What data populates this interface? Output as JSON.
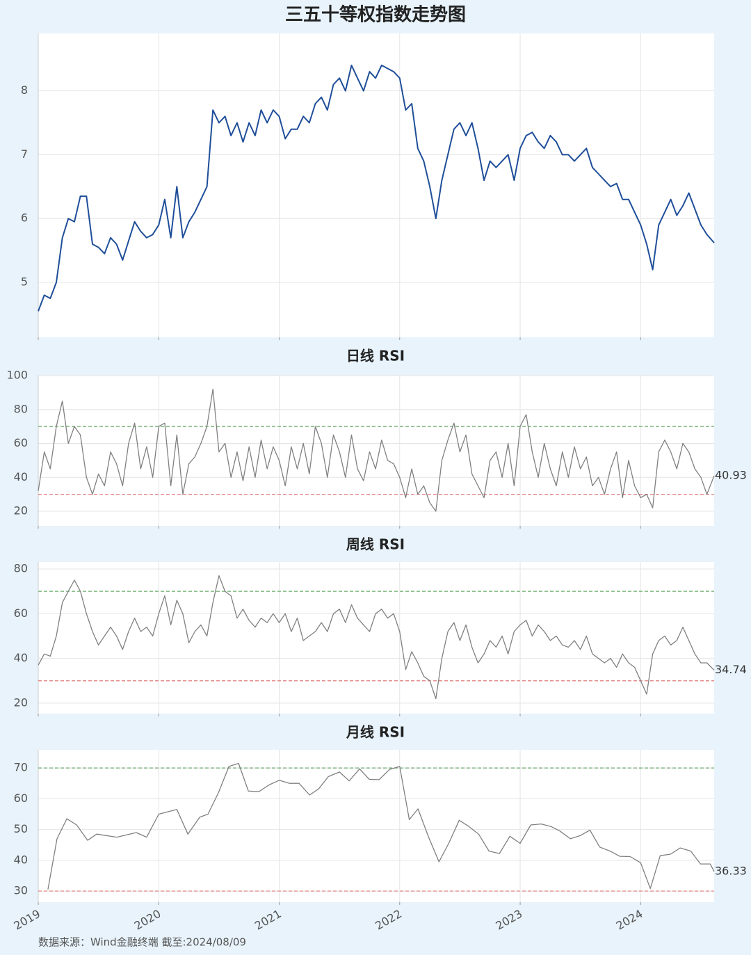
{
  "chart_data": [
    {
      "type": "line",
      "title": "三五十等权指数走势图",
      "x": [
        2019,
        2019.05,
        2019.1,
        2019.15,
        2019.2,
        2019.25,
        2019.3,
        2019.35,
        2019.4,
        2019.45,
        2019.5,
        2019.55,
        2019.6,
        2019.65,
        2019.7,
        2019.75,
        2019.8,
        2019.85,
        2019.9,
        2019.95,
        2020,
        2020.05,
        2020.1,
        2020.15,
        2020.2,
        2020.25,
        2020.3,
        2020.35,
        2020.4,
        2020.45,
        2020.5,
        2020.55,
        2020.6,
        2020.65,
        2020.7,
        2020.75,
        2020.8,
        2020.85,
        2020.9,
        2020.95,
        2021,
        2021.05,
        2021.1,
        2021.15,
        2021.2,
        2021.25,
        2021.3,
        2021.35,
        2021.4,
        2021.45,
        2021.5,
        2021.55,
        2021.6,
        2021.65,
        2021.7,
        2021.75,
        2021.8,
        2021.85,
        2021.9,
        2021.95,
        2022,
        2022.05,
        2022.1,
        2022.15,
        2022.2,
        2022.25,
        2022.3,
        2022.35,
        2022.4,
        2022.45,
        2022.5,
        2022.55,
        2022.6,
        2022.65,
        2022.7,
        2022.75,
        2022.8,
        2022.85,
        2022.9,
        2022.95,
        2023,
        2023.05,
        2023.1,
        2023.15,
        2023.2,
        2023.25,
        2023.3,
        2023.35,
        2023.4,
        2023.45,
        2023.5,
        2023.55,
        2023.6,
        2023.65,
        2023.7,
        2023.75,
        2023.8,
        2023.85,
        2023.9,
        2023.95,
        2024,
        2024.05,
        2024.1,
        2024.15,
        2024.2,
        2024.25,
        2024.3,
        2024.35,
        2024.4,
        2024.45,
        2024.5,
        2024.55,
        2024.61
      ],
      "series": [
        {
          "color": "#1f4e99",
          "values": [
            4.55,
            4.8,
            4.75,
            5.0,
            5.7,
            6.0,
            5.95,
            6.35,
            6.35,
            5.6,
            5.55,
            5.45,
            5.7,
            5.6,
            5.35,
            5.65,
            5.95,
            5.8,
            5.7,
            5.75,
            5.9,
            6.3,
            5.7,
            6.5,
            5.7,
            5.95,
            6.1,
            6.3,
            6.5,
            7.7,
            7.5,
            7.6,
            7.3,
            7.5,
            7.2,
            7.5,
            7.3,
            7.7,
            7.5,
            7.7,
            7.6,
            7.25,
            7.4,
            7.4,
            7.6,
            7.5,
            7.8,
            7.9,
            7.7,
            8.1,
            8.2,
            8.0,
            8.4,
            8.2,
            8.0,
            8.3,
            8.2,
            8.4,
            8.35,
            8.3,
            8.2,
            7.7,
            7.8,
            7.1,
            6.9,
            6.5,
            6.0,
            6.6,
            7.0,
            7.4,
            7.5,
            7.3,
            7.5,
            7.1,
            6.6,
            6.9,
            6.8,
            6.9,
            7.0,
            6.6,
            7.1,
            7.3,
            7.35,
            7.2,
            7.1,
            7.3,
            7.2,
            7.0,
            7.0,
            6.9,
            7.0,
            7.1,
            6.8,
            6.7,
            6.6,
            6.5,
            6.55,
            6.3,
            6.3,
            6.1,
            5.9,
            5.6,
            5.2,
            5.9,
            6.1,
            6.3,
            6.05,
            6.2,
            6.4,
            6.15,
            5.9,
            5.75,
            5.62
          ]
        }
      ],
      "xlim": [
        2019,
        2024.61
      ],
      "xticks": [
        2019,
        2020,
        2021,
        2022,
        2023,
        2024
      ],
      "xtick_labels": false,
      "ylim": [
        4.14,
        8.9
      ],
      "yticks": [
        5,
        6,
        7,
        8
      ],
      "grid": true
    },
    {
      "type": "line",
      "title": "日线 RSI",
      "x": [
        2019,
        2019.05,
        2019.1,
        2019.15,
        2019.2,
        2019.25,
        2019.3,
        2019.35,
        2019.4,
        2019.45,
        2019.5,
        2019.55,
        2019.6,
        2019.65,
        2019.7,
        2019.75,
        2019.8,
        2019.85,
        2019.9,
        2019.95,
        2020,
        2020.05,
        2020.1,
        2020.15,
        2020.2,
        2020.25,
        2020.3,
        2020.35,
        2020.4,
        2020.45,
        2020.5,
        2020.55,
        2020.6,
        2020.65,
        2020.7,
        2020.75,
        2020.8,
        2020.85,
        2020.9,
        2020.95,
        2021,
        2021.05,
        2021.1,
        2021.15,
        2021.2,
        2021.25,
        2021.3,
        2021.35,
        2021.4,
        2021.45,
        2021.5,
        2021.55,
        2021.6,
        2021.65,
        2021.7,
        2021.75,
        2021.8,
        2021.85,
        2021.9,
        2021.95,
        2022,
        2022.05,
        2022.1,
        2022.15,
        2022.2,
        2022.25,
        2022.3,
        2022.35,
        2022.4,
        2022.45,
        2022.5,
        2022.55,
        2022.6,
        2022.65,
        2022.7,
        2022.75,
        2022.8,
        2022.85,
        2022.9,
        2022.95,
        2023,
        2023.05,
        2023.1,
        2023.15,
        2023.2,
        2023.25,
        2023.3,
        2023.35,
        2023.4,
        2023.45,
        2023.5,
        2023.55,
        2023.6,
        2023.65,
        2023.7,
        2023.75,
        2023.8,
        2023.85,
        2023.9,
        2023.95,
        2024,
        2024.05,
        2024.1,
        2024.15,
        2024.2,
        2024.25,
        2024.3,
        2024.35,
        2024.4,
        2024.45,
        2024.5,
        2024.55,
        2024.61
      ],
      "series": [
        {
          "color": "#808080",
          "values": [
            32,
            55,
            45,
            70,
            85,
            60,
            70,
            65,
            40,
            30,
            42,
            35,
            55,
            48,
            35,
            60,
            72,
            45,
            58,
            40,
            70,
            72,
            35,
            65,
            30,
            48,
            52,
            60,
            70,
            92,
            55,
            60,
            40,
            55,
            38,
            58,
            40,
            62,
            45,
            58,
            50,
            35,
            58,
            45,
            60,
            42,
            70,
            60,
            40,
            65,
            55,
            40,
            65,
            45,
            38,
            55,
            45,
            62,
            50,
            48,
            40,
            28,
            45,
            30,
            35,
            25,
            20,
            50,
            62,
            72,
            55,
            65,
            42,
            35,
            28,
            50,
            55,
            40,
            60,
            35,
            70,
            77,
            55,
            40,
            60,
            45,
            35,
            55,
            40,
            58,
            45,
            52,
            35,
            40,
            30,
            45,
            55,
            28,
            50,
            35,
            28,
            30,
            22,
            55,
            62,
            55,
            45,
            60,
            55,
            45,
            40,
            30,
            40.93
          ]
        }
      ],
      "annotation": "40.93",
      "reference_lines": [
        {
          "value": 70,
          "color": "#6aaa6a"
        },
        {
          "value": 30,
          "color": "#e07a7a"
        }
      ],
      "xlim": [
        2019,
        2024.61
      ],
      "xticks": [
        2019,
        2020,
        2021,
        2022,
        2023,
        2024
      ],
      "xtick_labels": false,
      "ylim": [
        11.4,
        100
      ],
      "yticks": [
        20,
        40,
        60,
        80,
        100
      ],
      "grid": true
    },
    {
      "type": "line",
      "title": "周线 RSI",
      "x": [
        2019,
        2019.05,
        2019.1,
        2019.15,
        2019.2,
        2019.25,
        2019.3,
        2019.35,
        2019.4,
        2019.45,
        2019.5,
        2019.55,
        2019.6,
        2019.65,
        2019.7,
        2019.75,
        2019.8,
        2019.85,
        2019.9,
        2019.95,
        2020,
        2020.05,
        2020.1,
        2020.15,
        2020.2,
        2020.25,
        2020.3,
        2020.35,
        2020.4,
        2020.45,
        2020.5,
        2020.55,
        2020.6,
        2020.65,
        2020.7,
        2020.75,
        2020.8,
        2020.85,
        2020.9,
        2020.95,
        2021,
        2021.05,
        2021.1,
        2021.15,
        2021.2,
        2021.25,
        2021.3,
        2021.35,
        2021.4,
        2021.45,
        2021.5,
        2021.55,
        2021.6,
        2021.65,
        2021.7,
        2021.75,
        2021.8,
        2021.85,
        2021.9,
        2021.95,
        2022,
        2022.05,
        2022.1,
        2022.15,
        2022.2,
        2022.25,
        2022.3,
        2022.35,
        2022.4,
        2022.45,
        2022.5,
        2022.55,
        2022.6,
        2022.65,
        2022.7,
        2022.75,
        2022.8,
        2022.85,
        2022.9,
        2022.95,
        2023,
        2023.05,
        2023.1,
        2023.15,
        2023.2,
        2023.25,
        2023.3,
        2023.35,
        2023.4,
        2023.45,
        2023.5,
        2023.55,
        2023.6,
        2023.65,
        2023.7,
        2023.75,
        2023.8,
        2023.85,
        2023.9,
        2023.95,
        2024,
        2024.05,
        2024.1,
        2024.15,
        2024.2,
        2024.25,
        2024.3,
        2024.35,
        2024.4,
        2024.45,
        2024.5,
        2024.55,
        2024.61
      ],
      "series": [
        {
          "color": "#808080",
          "values": [
            37,
            42,
            41,
            50,
            65,
            70,
            75,
            70,
            60,
            52,
            46,
            50,
            54,
            50,
            44,
            52,
            58,
            52,
            54,
            50,
            60,
            68,
            55,
            66,
            60,
            47,
            52,
            55,
            50,
            65,
            77,
            70,
            68,
            58,
            62,
            57,
            54,
            58,
            56,
            60,
            56,
            60,
            52,
            58,
            48,
            50,
            52,
            56,
            52,
            60,
            62,
            56,
            64,
            58,
            55,
            52,
            60,
            62,
            58,
            60,
            52,
            35,
            43,
            38,
            32,
            30,
            22,
            40,
            52,
            56,
            48,
            55,
            45,
            38,
            42,
            48,
            45,
            50,
            42,
            52,
            55,
            57,
            50,
            55,
            52,
            48,
            50,
            46,
            45,
            48,
            44,
            50,
            42,
            40,
            38,
            40,
            36,
            42,
            38,
            36,
            30,
            24,
            42,
            48,
            50,
            46,
            48,
            54,
            48,
            42,
            38,
            38,
            34.74
          ]
        }
      ],
      "annotation": "34.74",
      "reference_lines": [
        {
          "value": 70,
          "color": "#6aaa6a"
        },
        {
          "value": 30,
          "color": "#e07a7a"
        }
      ],
      "xlim": [
        2019,
        2024.61
      ],
      "xticks": [
        2019,
        2020,
        2021,
        2022,
        2023,
        2024
      ],
      "xtick_labels": false,
      "ylim": [
        15.3,
        83.1
      ],
      "yticks": [
        20,
        40,
        60,
        80
      ],
      "grid": true
    },
    {
      "type": "line",
      "title": "月线 RSI",
      "x": [
        2019.08,
        2019.156,
        2019.237,
        2019.318,
        2019.41,
        2019.485,
        2019.652,
        2019.814,
        2019.9,
        2020.0,
        2020.15,
        2020.242,
        2020.34,
        2020.409,
        2020.496,
        2020.583,
        2020.663,
        2020.744,
        2020.83,
        2020.917,
        2021.0,
        2021.085,
        2021.165,
        2021.252,
        2021.327,
        2021.408,
        2021.5,
        2021.581,
        2021.667,
        2021.748,
        2021.829,
        2021.915,
        2022.0,
        2022.08,
        2022.152,
        2022.24,
        2022.326,
        2022.407,
        2022.494,
        2022.574,
        2022.655,
        2022.741,
        2022.828,
        2022.915,
        2023.0,
        2023.088,
        2023.174,
        2023.255,
        2023.33,
        2023.417,
        2023.498,
        2023.579,
        2023.66,
        2023.746,
        2023.827,
        2023.913,
        2024.0,
        2024.08,
        2024.162,
        2024.248,
        2024.329,
        2024.416,
        2024.497,
        2024.577,
        2024.61
      ],
      "series": [
        {
          "color": "#808080",
          "values": [
            30.5,
            47,
            53.5,
            51.5,
            46.5,
            48.5,
            47.5,
            49,
            47.5,
            55,
            56.5,
            48.5,
            54,
            55,
            62,
            70.5,
            71.5,
            62.5,
            62.3,
            64.5,
            66,
            65,
            65,
            61.2,
            63.2,
            67.2,
            68.7,
            65.8,
            69.7,
            66.3,
            66.2,
            69.5,
            70.5,
            53.2,
            56.7,
            47.5,
            39.5,
            45.5,
            53,
            51,
            48.5,
            43,
            42.2,
            47.8,
            45.5,
            51.5,
            51.8,
            51,
            49.5,
            47,
            48,
            49.8,
            44.3,
            43,
            41.3,
            41.2,
            39.2,
            30.8,
            41.5,
            42,
            44,
            43,
            38.8,
            38.8,
            36.33
          ]
        }
      ],
      "annotation": "36.33",
      "reference_lines": [
        {
          "value": 70,
          "color": "#6aaa6a"
        },
        {
          "value": 30,
          "color": "#e07a7a"
        }
      ],
      "xlim": [
        2019,
        2024.61
      ],
      "xticks": [
        2019,
        2020,
        2021,
        2022,
        2023,
        2024
      ],
      "xtick_labels": true,
      "ylim": [
        26.4,
        75.9
      ],
      "yticks": [
        30,
        40,
        50,
        60,
        70
      ],
      "grid": true
    }
  ],
  "footer": "数据来源：Wind金融终端 截至:2024/08/09"
}
